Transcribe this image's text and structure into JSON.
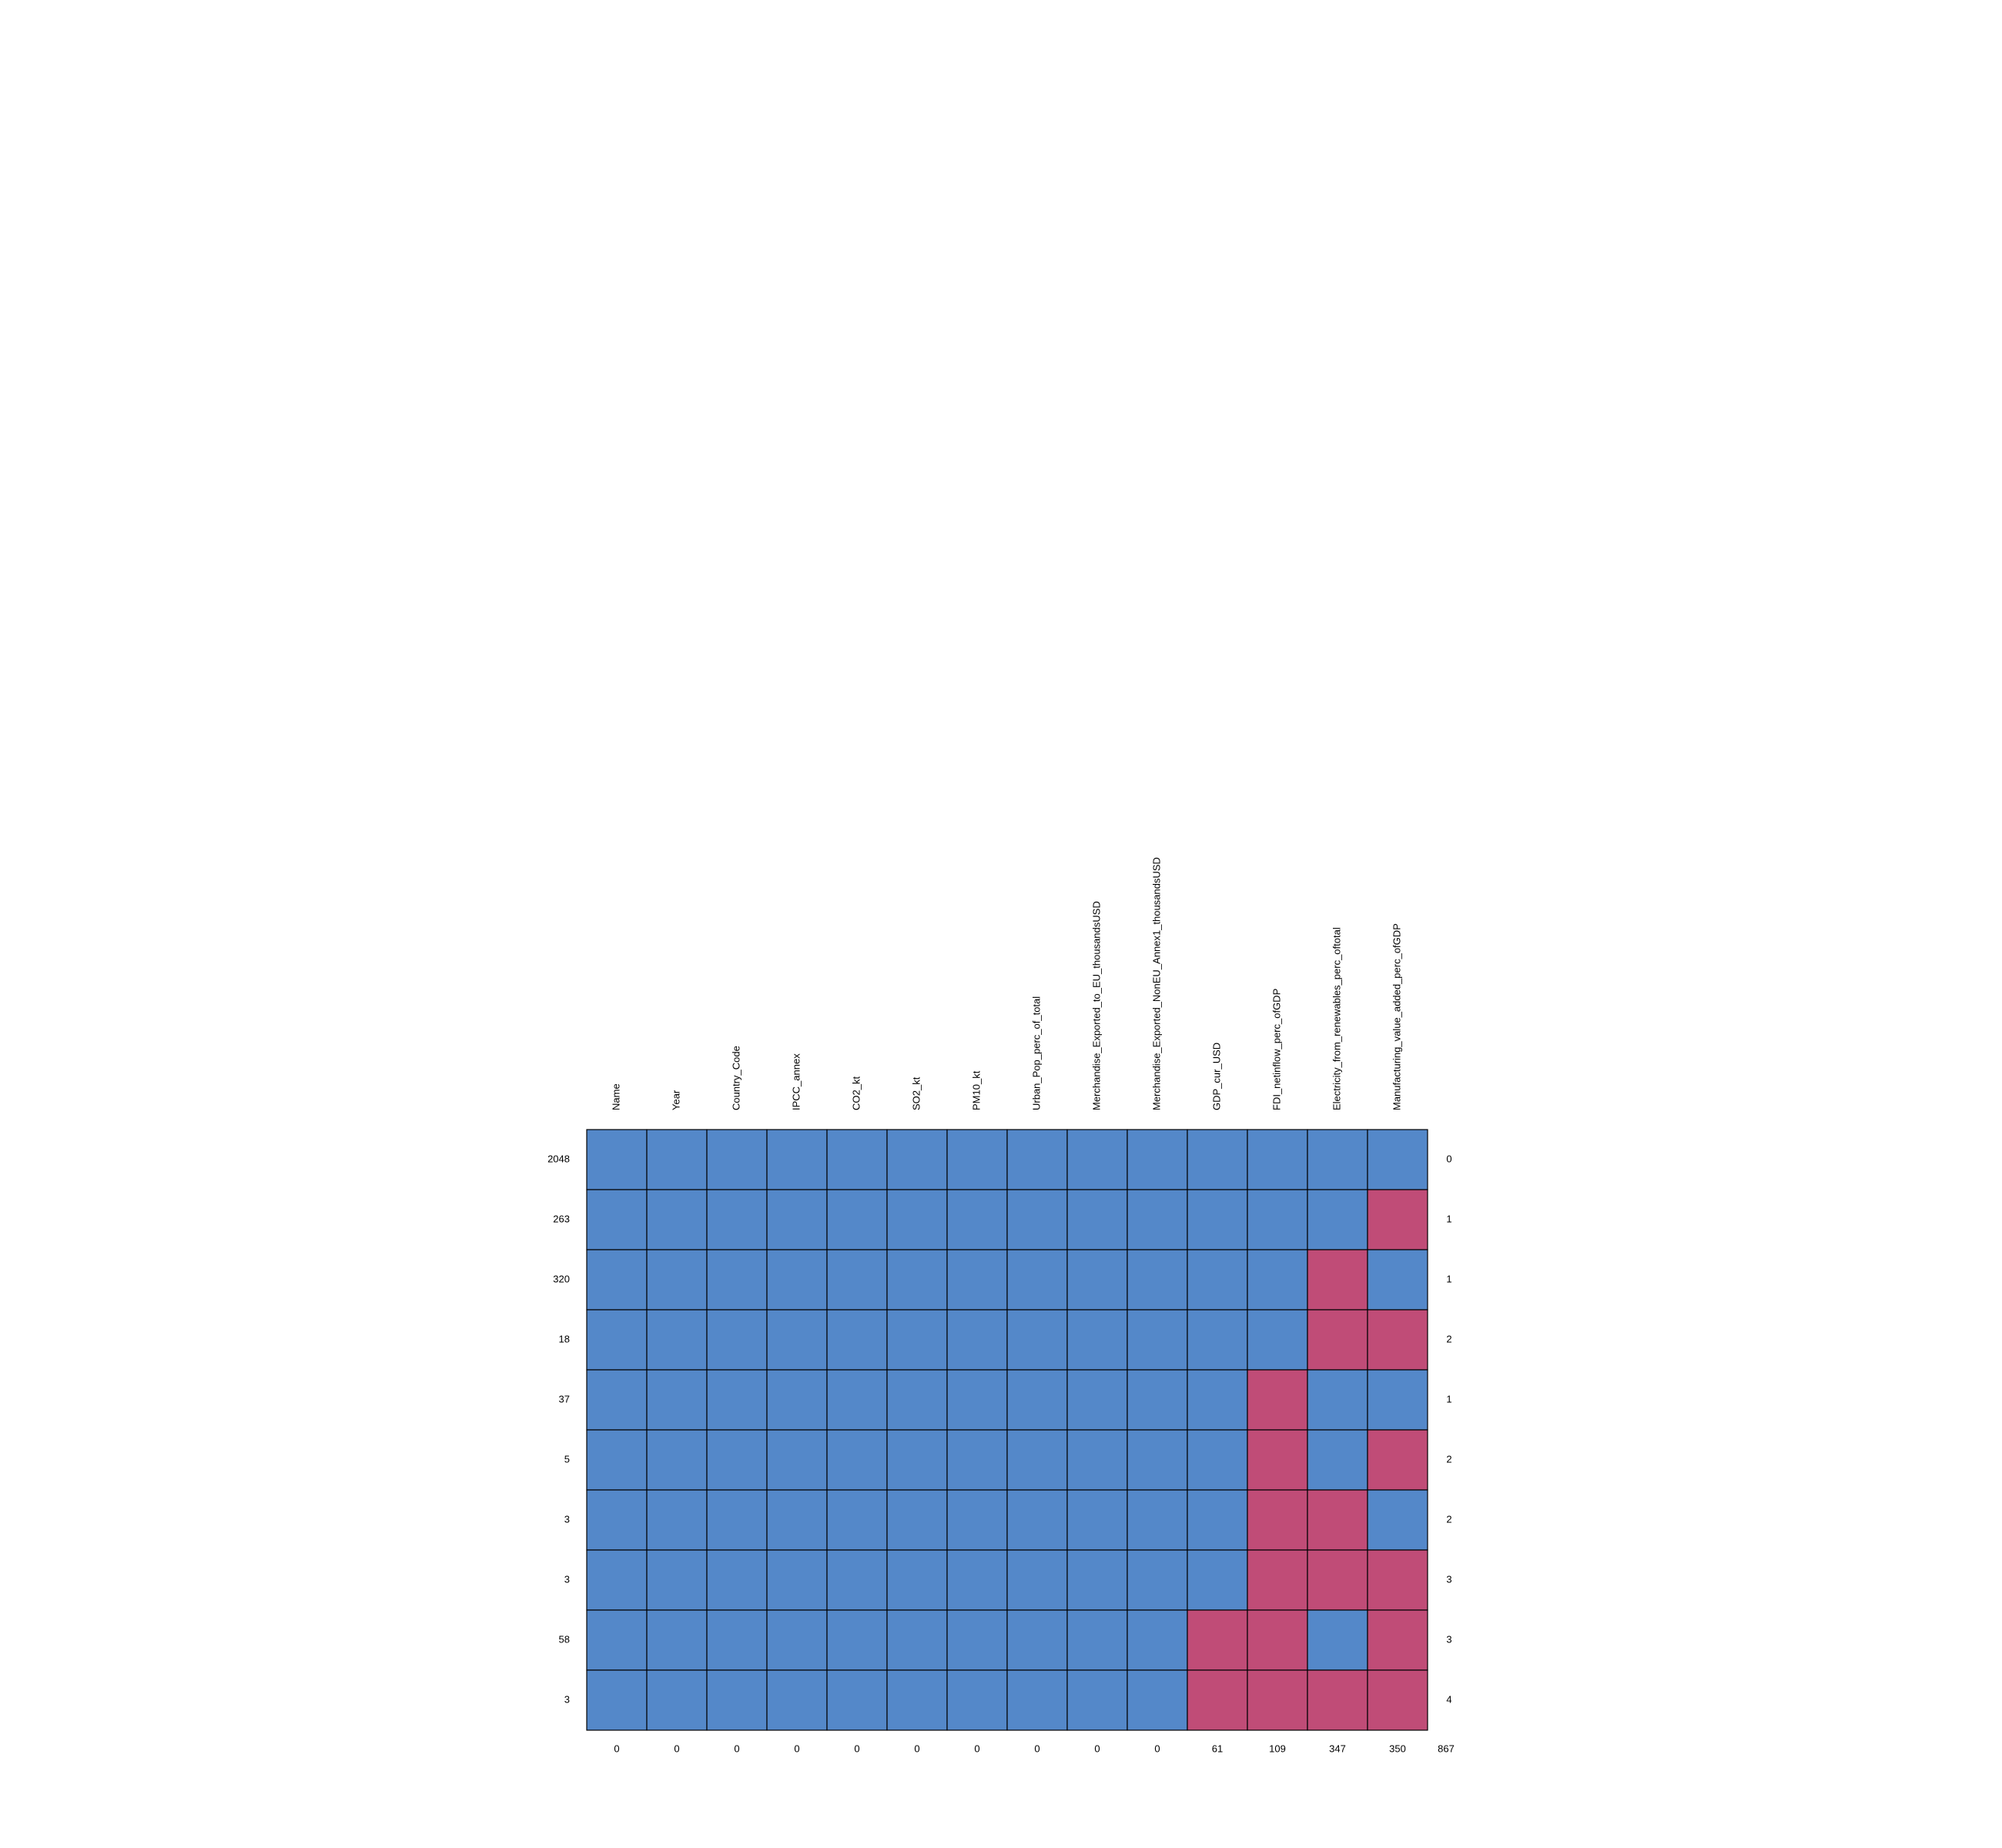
{
  "chart_data": {
    "type": "heatmap",
    "title": "",
    "xlabel": "",
    "ylabel": "",
    "columns": [
      "Name",
      "Year",
      "Country_Code",
      "IPCC_annex",
      "CO2_kt",
      "SO2_kt",
      "PM10_kt",
      "Urban_Pop_perc_of_total",
      "Merchandise_Exported_to_EU_thousandsUSD",
      "Merchandise_Exported_NonEU_Annex1_thousandsUSD",
      "GDP_cur_USD",
      "FDI_netinflow_perc_ofGDP",
      "Electricity_from_renewables_perc_oftotal",
      "Manufacturing_value_added_perc_ofGDP"
    ],
    "row_counts": [
      "2048",
      "263",
      "320",
      "18",
      "37",
      "5",
      "3",
      "3",
      "58",
      "3"
    ],
    "row_missing_counts": [
      "0",
      "1",
      "1",
      "2",
      "1",
      "2",
      "2",
      "3",
      "3",
      "4"
    ],
    "column_missing_counts": [
      "0",
      "0",
      "0",
      "0",
      "0",
      "0",
      "0",
      "0",
      "0",
      "0",
      "61",
      "109",
      "347",
      "350"
    ],
    "total_missing": "867",
    "pattern": [
      [
        1,
        1,
        1,
        1,
        1,
        1,
        1,
        1,
        1,
        1,
        1,
        1,
        1,
        1
      ],
      [
        1,
        1,
        1,
        1,
        1,
        1,
        1,
        1,
        1,
        1,
        1,
        1,
        1,
        0
      ],
      [
        1,
        1,
        1,
        1,
        1,
        1,
        1,
        1,
        1,
        1,
        1,
        1,
        0,
        1
      ],
      [
        1,
        1,
        1,
        1,
        1,
        1,
        1,
        1,
        1,
        1,
        1,
        1,
        0,
        0
      ],
      [
        1,
        1,
        1,
        1,
        1,
        1,
        1,
        1,
        1,
        1,
        1,
        0,
        1,
        1
      ],
      [
        1,
        1,
        1,
        1,
        1,
        1,
        1,
        1,
        1,
        1,
        1,
        0,
        1,
        0
      ],
      [
        1,
        1,
        1,
        1,
        1,
        1,
        1,
        1,
        1,
        1,
        1,
        0,
        0,
        1
      ],
      [
        1,
        1,
        1,
        1,
        1,
        1,
        1,
        1,
        1,
        1,
        1,
        0,
        0,
        0
      ],
      [
        1,
        1,
        1,
        1,
        1,
        1,
        1,
        1,
        1,
        1,
        0,
        0,
        1,
        0
      ],
      [
        1,
        1,
        1,
        1,
        1,
        1,
        1,
        1,
        1,
        1,
        0,
        0,
        0,
        0
      ]
    ],
    "colors": {
      "observed": "#5488c9",
      "missing": "#c04c77",
      "border": "#000000"
    }
  }
}
